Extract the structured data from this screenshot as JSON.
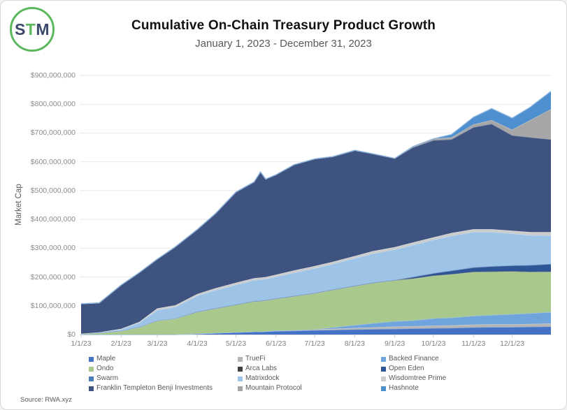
{
  "logo": {
    "letters": [
      "S",
      "T",
      "M"
    ],
    "ring_color": "#5cb85f",
    "accent_color": "#5cb85f",
    "text_color": "#3d4a6d"
  },
  "header": {
    "title": "Cumulative On-Chain Treasury Product Growth",
    "subtitle": "January 1, 2023 - December 31, 2023"
  },
  "source_note": "Source: RWA.xyz",
  "chart_data": {
    "type": "area",
    "stacked": true,
    "title": "Cumulative On-Chain Treasury Product Growth",
    "subtitle": "January 1, 2023 - December 31, 2023",
    "xlabel": "",
    "ylabel": "Market Cap",
    "grid": "horizontal",
    "legend_position": "bottom",
    "ylim_millions": [
      0,
      900
    ],
    "y_tick_labels": [
      "$0",
      "$100,000,000",
      "$200,000,000",
      "$300,000,000",
      "$400,000,000",
      "$500,000,000",
      "$600,000,000",
      "$700,000,000",
      "$800,000,000",
      "$900,000,000"
    ],
    "x_tick_labels": [
      "1/1/23",
      "2/1/23",
      "3/1/23",
      "4/1/23",
      "5/1/23",
      "6/1/23",
      "7/1/23",
      "8/1/23",
      "9/1/23",
      "10/1/23",
      "11/1/23",
      "12/1/23"
    ],
    "x_tick_days": [
      0,
      31,
      59,
      90,
      120,
      151,
      181,
      212,
      243,
      273,
      304,
      334
    ],
    "values_unit": "USD millions",
    "x_days": [
      0,
      14,
      31,
      45,
      59,
      73,
      90,
      104,
      120,
      134,
      139,
      143,
      151,
      165,
      181,
      195,
      212,
      226,
      243,
      257,
      273,
      287,
      304,
      318,
      334,
      348,
      364
    ],
    "series": [
      {
        "name": "Maple",
        "color": "#4472c4",
        "values": [
          0,
          0,
          0,
          0,
          0,
          0,
          3,
          5,
          8,
          10,
          10,
          11,
          12,
          13,
          15,
          16,
          18,
          19,
          20,
          21,
          22,
          23,
          25,
          26,
          26,
          27,
          28
        ]
      },
      {
        "name": "TrueFi",
        "color": "#b5b5b5",
        "values": [
          0,
          0,
          0,
          0,
          0,
          0,
          0,
          0,
          0,
          0,
          0,
          0,
          2,
          2,
          3,
          4,
          5,
          6,
          8,
          8,
          9,
          9,
          10,
          10,
          10,
          10,
          10
        ]
      },
      {
        "name": "Backed Finance",
        "color": "#6fa4dc",
        "values": [
          0,
          0,
          0,
          0,
          0,
          0,
          0,
          0,
          0,
          0,
          0,
          0,
          0,
          0,
          0,
          5,
          10,
          14,
          18,
          20,
          25,
          27,
          30,
          32,
          35,
          37,
          40
        ]
      },
      {
        "name": "Ondo",
        "color": "#a9c98c",
        "values": [
          2,
          5,
          12,
          25,
          48,
          55,
          75,
          85,
          95,
          105,
          106,
          107,
          110,
          118,
          125,
          130,
          135,
          140,
          142,
          145,
          148,
          150,
          152,
          150,
          148,
          143,
          140
        ]
      },
      {
        "name": "Arca Labs",
        "color": "#404040",
        "values": [
          1,
          1,
          1,
          1,
          1,
          1,
          1,
          1,
          1,
          1,
          1,
          1,
          1,
          1,
          1,
          1,
          1,
          1,
          1,
          1,
          1,
          1,
          1,
          1,
          1,
          1,
          1
        ]
      },
      {
        "name": "Open Eden",
        "color": "#2e5596",
        "values": [
          0,
          0,
          0,
          0,
          0,
          0,
          0,
          0,
          0,
          0,
          0,
          0,
          0,
          0,
          0,
          0,
          0,
          0,
          0,
          5,
          8,
          12,
          15,
          18,
          20,
          23,
          26
        ]
      },
      {
        "name": "Swarm",
        "color": "#4a7ebb",
        "values": [
          0,
          0,
          0,
          0,
          0,
          0,
          1,
          1,
          1,
          1,
          1,
          1,
          1,
          1,
          1,
          1,
          1,
          1,
          1,
          1,
          1,
          1,
          1,
          1,
          1,
          1,
          1
        ]
      },
      {
        "name": "Matrixdock",
        "color": "#9dc3e6",
        "values": [
          0,
          2,
          5,
          15,
          36,
          40,
          55,
          62,
          68,
          72,
          73,
          73,
          75,
          80,
          85,
          88,
          95,
          100,
          105,
          110,
          115,
          120,
          122,
          118,
          110,
          103,
          98
        ]
      },
      {
        "name": "Wisdomtree Prime",
        "color": "#cccccc",
        "values": [
          0,
          0,
          2,
          3,
          6,
          6,
          6,
          7,
          7,
          7,
          7,
          7,
          7,
          8,
          8,
          8,
          8,
          9,
          9,
          9,
          9,
          10,
          10,
          10,
          10,
          11,
          12
        ]
      },
      {
        "name": "Franklin Templeton Benji Investments",
        "color": "#3f5381",
        "values": [
          104,
          102,
          152,
          171,
          171,
          203,
          224,
          259,
          315,
          334,
          367,
          340,
          347,
          367,
          372,
          365,
          367,
          338,
          308,
          330,
          337,
          325,
          354,
          366,
          331,
          329,
          322
        ]
      },
      {
        "name": "Mountain Protocol",
        "color": "#a6a6a6",
        "values": [
          0,
          0,
          0,
          0,
          0,
          0,
          0,
          0,
          0,
          0,
          0,
          0,
          0,
          0,
          0,
          0,
          0,
          0,
          0,
          3,
          5,
          7,
          10,
          13,
          20,
          60,
          105
        ]
      },
      {
        "name": "Hashnote",
        "color": "#4e8fd0",
        "values": [
          0,
          0,
          0,
          0,
          0,
          0,
          0,
          0,
          0,
          0,
          0,
          0,
          0,
          0,
          0,
          0,
          0,
          0,
          0,
          0,
          0,
          10,
          25,
          40,
          40,
          45,
          62
        ]
      }
    ],
    "legend_columns": [
      [
        "Maple",
        "Ondo",
        "Swarm",
        "Franklin Templeton Benji Investments"
      ],
      [
        "TrueFi",
        "Arca Labs",
        "Matrixdock",
        "Mountain Protocol"
      ],
      [
        "Backed Finance",
        "Open Eden",
        "Wisdomtree Prime",
        "Hashnote"
      ]
    ]
  }
}
